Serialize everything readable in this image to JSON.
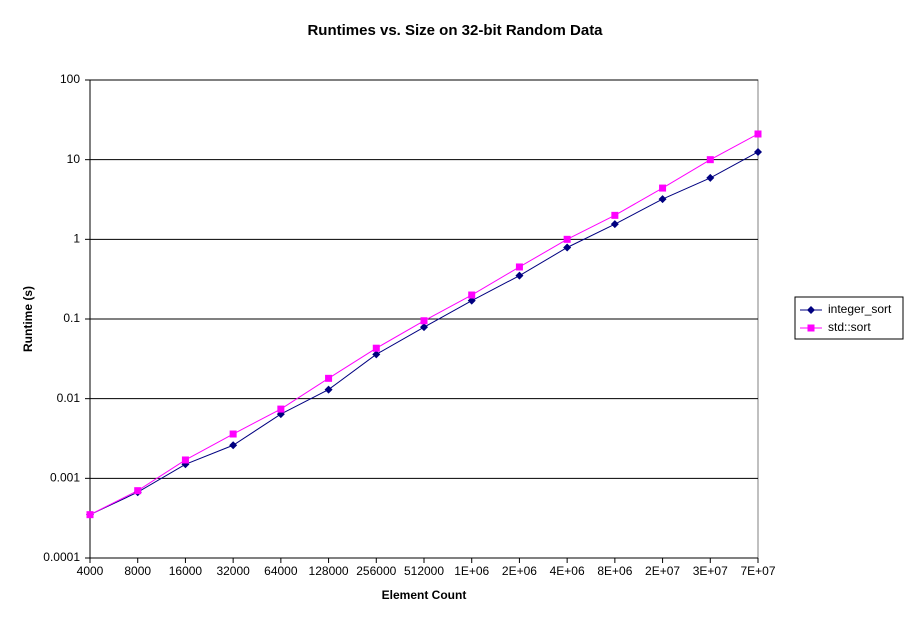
{
  "chart_data": {
    "type": "line",
    "title": "Runtimes vs. Size on 32-bit Random Data",
    "x_label": "Element Count",
    "y_label": "Runtime (s)",
    "categories": [
      "4000",
      "8000",
      "16000",
      "32000",
      "64000",
      "128000",
      "256000",
      "512000",
      "1E+06",
      "2E+06",
      "4E+06",
      "8E+06",
      "2E+07",
      "3E+07",
      "7E+07"
    ],
    "series": [
      {
        "name": "integer_sort",
        "color": "#000080",
        "marker": "diamond",
        "values": [
          0.00035,
          0.00067,
          0.0015,
          0.0026,
          0.0064,
          0.013,
          0.036,
          0.079,
          0.17,
          0.35,
          0.79,
          1.55,
          3.2,
          5.9,
          12.5
        ]
      },
      {
        "name": "std::sort",
        "color": "#ff00ff",
        "marker": "square",
        "values": [
          0.00035,
          0.0007,
          0.0017,
          0.0036,
          0.0074,
          0.018,
          0.043,
          0.095,
          0.2,
          0.45,
          1.0,
          2.0,
          4.4,
          10,
          21
        ]
      }
    ],
    "ylim": [
      0.0001,
      100
    ],
    "yticks": [
      0.0001,
      0.001,
      0.01,
      0.1,
      1,
      10,
      100
    ],
    "log_y": true,
    "grid": true,
    "legend": "right"
  }
}
